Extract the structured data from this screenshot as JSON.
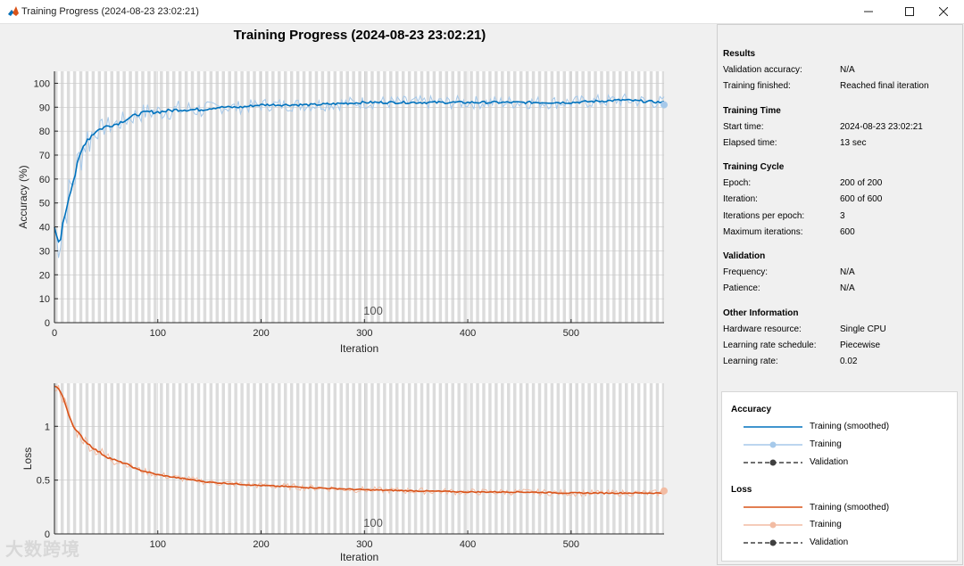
{
  "window": {
    "title": "Training Progress (2024-08-23 23:02:21)",
    "icon": "matlab-icon",
    "controls": [
      "minimize-icon",
      "maximize-icon",
      "close-icon"
    ]
  },
  "main": {
    "title": "Training Progress (2024-08-23 23:02:21)"
  },
  "chart_data": [
    {
      "type": "line",
      "ylabel": "Accuracy (%)",
      "xlabel": "Iteration",
      "xlim": [
        0,
        590
      ],
      "ylim": [
        0,
        105
      ],
      "xticks": [
        "0",
        "100",
        "200",
        "300",
        "400",
        "500"
      ],
      "yticks": [
        "0",
        "10",
        "20",
        "30",
        "40",
        "50",
        "60",
        "70",
        "80",
        "90",
        "100"
      ],
      "epoch_label": "100",
      "series": [
        {
          "name": "Training (smoothed)",
          "color": "#0072bd",
          "x": [
            0,
            3,
            6,
            10,
            15,
            20,
            25,
            30,
            40,
            50,
            60,
            70,
            80,
            90,
            100,
            120,
            140,
            160,
            180,
            200,
            250,
            300,
            350,
            400,
            450,
            500,
            550,
            590
          ],
          "values": [
            40,
            33,
            36,
            45,
            55,
            62,
            70,
            76,
            80,
            82,
            83,
            85,
            87,
            88,
            88,
            89,
            89,
            90,
            90,
            91,
            91,
            92,
            92,
            92,
            92,
            92,
            93,
            92
          ]
        },
        {
          "name": "Training",
          "color": "#a6c9ea",
          "marker_x": 590,
          "marker_value": 91
        }
      ]
    },
    {
      "type": "line",
      "ylabel": "Loss",
      "xlabel": "Iteration",
      "xlim": [
        0,
        590
      ],
      "ylim": [
        0,
        1.4
      ],
      "xticks": [
        "100",
        "200",
        "300",
        "400",
        "500"
      ],
      "yticks": [
        "0",
        "0.5",
        "1"
      ],
      "epoch_label": "100",
      "series": [
        {
          "name": "Training (smoothed)",
          "color": "#d95319",
          "x": [
            0,
            5,
            10,
            15,
            20,
            30,
            40,
            50,
            60,
            70,
            80,
            100,
            120,
            150,
            200,
            250,
            300,
            350,
            400,
            450,
            500,
            550,
            590
          ],
          "values": [
            1.38,
            1.34,
            1.22,
            1.08,
            0.97,
            0.86,
            0.78,
            0.72,
            0.68,
            0.65,
            0.6,
            0.55,
            0.52,
            0.48,
            0.45,
            0.43,
            0.41,
            0.4,
            0.39,
            0.39,
            0.38,
            0.38,
            0.38
          ]
        },
        {
          "name": "Training",
          "color": "#f2bca3",
          "marker_x": 590,
          "marker_value": 0.4
        }
      ]
    }
  ],
  "info": {
    "results": {
      "head": "Results",
      "val_acc_label": "Validation accuracy:",
      "val_acc": "N/A",
      "finished_label": "Training finished:",
      "finished": "Reached final iteration"
    },
    "time": {
      "head": "Training Time",
      "start_label": "Start time:",
      "start": "2024-08-23 23:02:21",
      "elapsed_label": "Elapsed time:",
      "elapsed": "13 sec"
    },
    "cycle": {
      "head": "Training Cycle",
      "epoch_label": "Epoch:",
      "epoch": "200 of 200",
      "iteration_label": "Iteration:",
      "iteration": "600 of 600",
      "ipe_label": "Iterations per epoch:",
      "ipe": "3",
      "maxit_label": "Maximum iterations:",
      "maxit": "600"
    },
    "validation": {
      "head": "Validation",
      "freq_label": "Frequency:",
      "freq": "N/A",
      "patience_label": "Patience:",
      "patience": "N/A"
    },
    "other": {
      "head": "Other Information",
      "hw_label": "Hardware resource:",
      "hw": "Single CPU",
      "lrs_label": "Learning rate schedule:",
      "lrs": "Piecewise",
      "lr_label": "Learning rate:",
      "lr": "0.02"
    }
  },
  "legend": {
    "accuracy_head": "Accuracy",
    "acc_smoothed": "Training (smoothed)",
    "acc_training": "Training",
    "acc_validation": "Validation",
    "loss_head": "Loss",
    "loss_smoothed": "Training (smoothed)",
    "loss_training": "Training",
    "loss_validation": "Validation",
    "colors": {
      "acc": "#0072bd",
      "acc_light": "#a6c9ea",
      "loss": "#d95319",
      "loss_light": "#f2bca3",
      "val": "#404040"
    }
  },
  "watermark": "大数跨境"
}
